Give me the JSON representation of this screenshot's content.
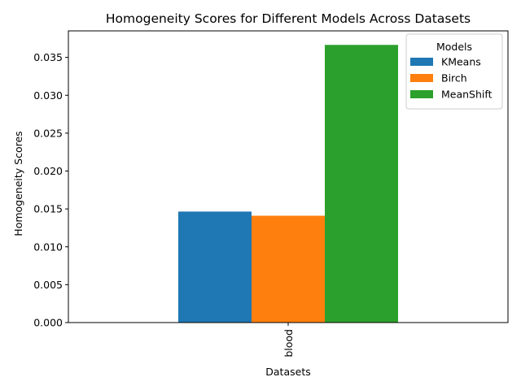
{
  "chart_data": {
    "type": "bar",
    "title": "Homogeneity Scores for Different Models Across Datasets",
    "xlabel": "Datasets",
    "ylabel": "Homogeneity Scores",
    "categories": [
      "blood"
    ],
    "series": [
      {
        "name": "KMeans",
        "values": [
          0.01465
        ],
        "color": "#1f77b4"
      },
      {
        "name": "Birch",
        "values": [
          0.0141
        ],
        "color": "#ff7f0e"
      },
      {
        "name": "MeanShift",
        "values": [
          0.03665
        ],
        "color": "#2ca02c"
      }
    ],
    "ylim": [
      0,
      0.0385
    ],
    "yticks": [
      "0.000",
      "0.005",
      "0.010",
      "0.015",
      "0.020",
      "0.025",
      "0.030",
      "0.035"
    ],
    "ytick_values": [
      0,
      0.005,
      0.01,
      0.015,
      0.02,
      0.025,
      0.03,
      0.035
    ],
    "legend_title": "Models",
    "legend_position": "top-right",
    "grid": false
  }
}
